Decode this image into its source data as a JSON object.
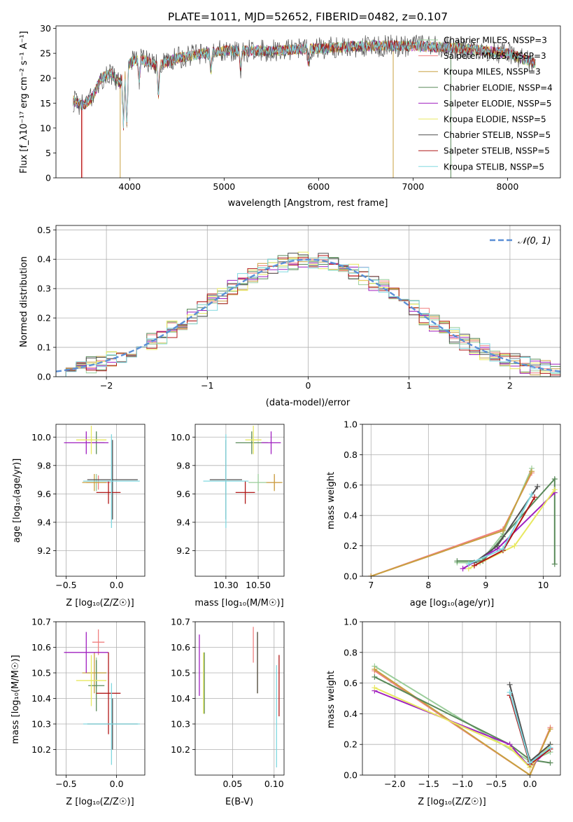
{
  "figure": {
    "title": "PLATE=1011, MJD=52652, FIBERID=0482, z=0.107",
    "colors": [
      "#9acd9a",
      "#f08080",
      "#c8a040",
      "#5a8a5a",
      "#a020c0",
      "#e8e860",
      "#505050",
      "#b01818",
      "#80d8e0"
    ]
  },
  "chart_data": [
    {
      "id": "spectrum",
      "type": "line",
      "xlabel": "wavelength [Angstrom, rest frame]",
      "ylabel": "Flux [f_λ10⁻¹⁷ erg cm⁻² s⁻¹ A⁻¹]",
      "xlim": [
        3220,
        8560
      ],
      "ylim": [
        0,
        30.5
      ],
      "xticks": [
        4000,
        5000,
        6000,
        7000,
        8000
      ],
      "yticks": [
        0,
        5,
        10,
        15,
        20,
        25,
        30
      ],
      "legend_position": "upper-right",
      "series": [
        {
          "name": "Chabrier MILES, N_SSP=3",
          "color": "#9acd9a"
        },
        {
          "name": "Salpeter MILES, N_SSP=3",
          "color": "#f08080"
        },
        {
          "name": "Kroupa MILES, N_SSP=3",
          "color": "#c8a040"
        },
        {
          "name": "Chabrier ELODIE, N_SSP=4",
          "color": "#5a8a5a"
        },
        {
          "name": "Salpeter ELODIE, N_SSP=5",
          "color": "#a020c0"
        },
        {
          "name": "Kroupa ELODIE, N_SSP=5",
          "color": "#e8e860"
        },
        {
          "name": "Chabrier STELIB, N_SSP=5",
          "color": "#505050"
        },
        {
          "name": "Salpeter STELIB, N_SSP=5",
          "color": "#b01818"
        },
        {
          "name": "Kroupa STELIB, N_SSP=5",
          "color": "#80d8e0"
        }
      ],
      "continuum": [
        [
          3400,
          15.5
        ],
        [
          3500,
          14.5
        ],
        [
          3600,
          16
        ],
        [
          3700,
          20
        ],
        [
          3800,
          21
        ],
        [
          3900,
          19
        ],
        [
          4000,
          23
        ],
        [
          4100,
          24
        ],
        [
          4300,
          22.5
        ],
        [
          4500,
          24
        ],
        [
          4800,
          25
        ],
        [
          5000,
          25.5
        ],
        [
          5500,
          25.5
        ],
        [
          6000,
          26
        ],
        [
          6500,
          26.5
        ],
        [
          7000,
          26.5
        ],
        [
          7500,
          26
        ],
        [
          8000,
          25
        ],
        [
          8300,
          23
        ]
      ]
    },
    {
      "id": "residuals",
      "type": "histogram",
      "xlabel": "(data-model)/error",
      "ylabel": "Normed distribution",
      "xlim": [
        -2.5,
        2.5
      ],
      "ylim": [
        0,
        0.515
      ],
      "xticks": [
        -2,
        -1,
        0,
        1,
        2
      ],
      "yticks": [
        0.0,
        0.1,
        0.2,
        0.3,
        0.4,
        0.5
      ],
      "legend": [
        "𝒩(0, 1)"
      ],
      "normal_curve_color": "#5b8fd6"
    },
    {
      "id": "age-vs-z",
      "type": "scatter",
      "xlabel": "Z [log₁₀(Z/Z☉)]",
      "ylabel": "age  [log₁₀(age/yr)]",
      "xlim": [
        -0.6,
        0.28
      ],
      "ylim": [
        9.02,
        10.09
      ],
      "xticks": [
        -0.5,
        0.0
      ],
      "xtick_labels": [
        "−0.5",
        "0.0"
      ],
      "yticks": [
        9.2,
        9.4,
        9.6,
        9.8,
        10.0
      ],
      "points": [
        {
          "x": -0.2,
          "y": 9.68,
          "xe": 0.1,
          "ye": 0.06,
          "c": 0
        },
        {
          "x": -0.18,
          "y": 9.68,
          "xe": 0.12,
          "ye": 0.05,
          "c": 1
        },
        {
          "x": -0.22,
          "y": 9.68,
          "xe": 0.12,
          "ye": 0.06,
          "c": 2
        },
        {
          "x": -0.2,
          "y": 9.96,
          "xe": 0.08,
          "ye": 0.08,
          "c": 3
        },
        {
          "x": -0.3,
          "y": 9.96,
          "xe": 0.22,
          "ye": 0.08,
          "c": 4
        },
        {
          "x": -0.25,
          "y": 9.98,
          "xe": 0.15,
          "ye": 0.1,
          "c": 5
        },
        {
          "x": -0.04,
          "y": 9.7,
          "xe": 0.25,
          "ye": 0.28,
          "c": 6
        },
        {
          "x": -0.08,
          "y": 9.61,
          "xe": 0.12,
          "ye": 0.08,
          "c": 7
        },
        {
          "x": -0.05,
          "y": 9.69,
          "xe": 0.28,
          "ye": 0.33,
          "c": 8
        }
      ]
    },
    {
      "id": "age-vs-mass",
      "type": "scatter",
      "xlabel": "mass [log₁₀(M/M☉)]",
      "ylabel": "",
      "xlim": [
        10.11,
        10.66
      ],
      "ylim": [
        9.02,
        10.09
      ],
      "xticks": [
        10.3,
        10.5
      ],
      "xtick_labels": [
        "10.30",
        "10.50"
      ],
      "yticks": [
        9.2,
        9.4,
        9.6,
        9.8,
        10.0
      ],
      "points": [
        {
          "x": 10.5,
          "y": 9.68,
          "xe": 0.06,
          "ye": 0.06,
          "c": 0
        },
        {
          "x": 10.6,
          "y": 9.68,
          "xe": 0.04,
          "ye": 0.05,
          "c": 1
        },
        {
          "x": 10.6,
          "y": 9.68,
          "xe": 0.05,
          "ye": 0.06,
          "c": 2
        },
        {
          "x": 10.46,
          "y": 9.96,
          "xe": 0.1,
          "ye": 0.08,
          "c": 3
        },
        {
          "x": 10.58,
          "y": 9.96,
          "xe": 0.06,
          "ye": 0.08,
          "c": 4
        },
        {
          "x": 10.47,
          "y": 9.98,
          "xe": 0.05,
          "ye": 0.1,
          "c": 5
        },
        {
          "x": 10.3,
          "y": 9.7,
          "xe": 0.1,
          "ye": 0.28,
          "c": 6
        },
        {
          "x": 10.42,
          "y": 9.61,
          "xe": 0.06,
          "ye": 0.08,
          "c": 7
        },
        {
          "x": 10.3,
          "y": 9.69,
          "xe": 0.14,
          "ye": 0.33,
          "c": 8
        }
      ]
    },
    {
      "id": "weight-vs-age",
      "type": "line",
      "xlabel": "age  [log₁₀(age/yr)]",
      "ylabel": "mass weight",
      "xlim": [
        6.85,
        10.3
      ],
      "ylim": [
        0,
        1.0
      ],
      "xticks": [
        7,
        8,
        9,
        10
      ],
      "yticks": [
        0.0,
        0.2,
        0.4,
        0.6,
        0.8,
        1.0
      ],
      "series": [
        {
          "c": 0,
          "pts": [
            [
              8.5,
              0.09
            ],
            [
              8.9,
              0.09
            ],
            [
              9.3,
              0.28
            ],
            [
              9.8,
              0.71
            ]
          ]
        },
        {
          "c": 1,
          "pts": [
            [
              7.0,
              0.0
            ],
            [
              9.3,
              0.31
            ],
            [
              9.8,
              0.68
            ]
          ]
        },
        {
          "c": 2,
          "pts": [
            [
              7.0,
              0.0
            ],
            [
              9.3,
              0.3
            ],
            [
              9.8,
              0.69
            ]
          ]
        },
        {
          "c": 3,
          "pts": [
            [
              8.5,
              0.1
            ],
            [
              8.95,
              0.1
            ],
            [
              9.3,
              0.26
            ],
            [
              10.2,
              0.64
            ],
            [
              10.2,
              0.08
            ]
          ]
        },
        {
          "c": 4,
          "pts": [
            [
              8.6,
              0.05
            ],
            [
              9.2,
              0.18
            ],
            [
              10.2,
              0.55
            ]
          ]
        },
        {
          "c": 5,
          "pts": [
            [
              8.7,
              0.05
            ],
            [
              9.5,
              0.2
            ],
            [
              10.2,
              0.57
            ]
          ]
        },
        {
          "c": 6,
          "pts": [
            [
              8.8,
              0.09
            ],
            [
              9.2,
              0.2
            ],
            [
              9.9,
              0.59
            ]
          ]
        },
        {
          "c": 7,
          "pts": [
            [
              8.8,
              0.07
            ],
            [
              9.3,
              0.17
            ],
            [
              9.85,
              0.52
            ]
          ]
        },
        {
          "c": 8,
          "pts": [
            [
              8.7,
              0.08
            ],
            [
              9.3,
              0.18
            ],
            [
              9.8,
              0.54
            ]
          ]
        }
      ]
    },
    {
      "id": "mass-vs-z",
      "type": "scatter",
      "xlabel": "Z [log₁₀(Z/Z☉)]",
      "ylabel": "mass [log₁₀(M/M☉)]",
      "xlim": [
        -0.6,
        0.28
      ],
      "ylim": [
        10.1,
        10.7
      ],
      "xticks": [
        -0.5,
        0.0
      ],
      "xtick_labels": [
        "−0.5",
        "0.0"
      ],
      "yticks": [
        10.2,
        10.3,
        10.4,
        10.5,
        10.6,
        10.7
      ],
      "points": [
        {
          "x": -0.2,
          "y": 10.5,
          "xe": 0.1,
          "ye": 0.06,
          "c": 0
        },
        {
          "x": -0.18,
          "y": 10.62,
          "xe": 0.06,
          "ye": 0.05,
          "c": 1
        },
        {
          "x": -0.22,
          "y": 10.5,
          "xe": 0.12,
          "ye": 0.08,
          "c": 2
        },
        {
          "x": -0.2,
          "y": 10.45,
          "xe": 0.08,
          "ye": 0.1,
          "c": 3
        },
        {
          "x": -0.3,
          "y": 10.58,
          "xe": 0.22,
          "ye": 0.08,
          "c": 4
        },
        {
          "x": -0.25,
          "y": 10.47,
          "xe": 0.15,
          "ye": 0.1,
          "c": 5
        },
        {
          "x": -0.04,
          "y": 10.3,
          "xe": 0.25,
          "ye": 0.1,
          "c": 6
        },
        {
          "x": -0.08,
          "y": 10.42,
          "xe": 0.12,
          "ye": 0.16,
          "c": 7
        },
        {
          "x": -0.05,
          "y": 10.3,
          "xe": 0.28,
          "ye": 0.16,
          "c": 8
        }
      ]
    },
    {
      "id": "mass-vs-ebv",
      "type": "scatter",
      "xlabel": "E(B-V)",
      "ylabel": "",
      "xlim": [
        0.005,
        0.112
      ],
      "ylim": [
        10.1,
        10.7
      ],
      "xticks": [
        0.05,
        0.1
      ],
      "xtick_labels": [
        "0.05",
        "0.10"
      ],
      "yticks": [
        10.2,
        10.3,
        10.4,
        10.5,
        10.6,
        10.7
      ],
      "points": [
        {
          "x": 0.075,
          "y": 10.61,
          "xe": 0,
          "ye": 0.07,
          "c": 1
        },
        {
          "x": 0.08,
          "y": 10.54,
          "xe": 0,
          "ye": 0.12,
          "c": 2
        },
        {
          "x": 0.016,
          "y": 10.46,
          "xe": 0,
          "ye": 0.12,
          "c": 3
        },
        {
          "x": 0.01,
          "y": 10.53,
          "xe": 0,
          "ye": 0.12,
          "c": 4
        },
        {
          "x": 0.015,
          "y": 10.46,
          "xe": 0,
          "ye": 0.12,
          "c": 5
        },
        {
          "x": 0.08,
          "y": 10.54,
          "xe": 0,
          "ye": 0.12,
          "c": 6
        },
        {
          "x": 0.106,
          "y": 10.45,
          "xe": 0,
          "ye": 0.12,
          "c": 7
        },
        {
          "x": 0.103,
          "y": 10.33,
          "xe": 0,
          "ye": 0.2,
          "c": 8
        }
      ]
    },
    {
      "id": "weight-vs-z",
      "type": "line",
      "xlabel": "Z [log₁₀(Z/Z☉)]",
      "ylabel": "mass weight",
      "xlim": [
        -2.48,
        0.45
      ],
      "ylim": [
        0,
        1.0
      ],
      "xticks": [
        -2.0,
        -1.5,
        -1.0,
        -0.5,
        0.0
      ],
      "xtick_labels": [
        "−2.0",
        "−1.5",
        "−1.0",
        "−0.5",
        "0.0"
      ],
      "yticks": [
        0.0,
        0.2,
        0.4,
        0.6,
        0.8,
        1.0
      ],
      "series": [
        {
          "c": 0,
          "pts": [
            [
              -2.3,
              0.71
            ],
            [
              0.0,
              0.09
            ],
            [
              0.3,
              0.15
            ]
          ]
        },
        {
          "c": 1,
          "pts": [
            [
              -2.3,
              0.68
            ],
            [
              0.0,
              0.0
            ],
            [
              0.3,
              0.31
            ]
          ]
        },
        {
          "c": 2,
          "pts": [
            [
              -2.3,
              0.69
            ],
            [
              0.0,
              0.0
            ],
            [
              0.3,
              0.3
            ]
          ]
        },
        {
          "c": 3,
          "pts": [
            [
              -2.3,
              0.64
            ],
            [
              -0.3,
              0.2
            ],
            [
              0.0,
              0.1
            ],
            [
              0.3,
              0.08
            ]
          ]
        },
        {
          "c": 4,
          "pts": [
            [
              -2.3,
              0.55
            ],
            [
              -0.3,
              0.2
            ],
            [
              0.0,
              0.05
            ],
            [
              0.3,
              0.18
            ]
          ]
        },
        {
          "c": 5,
          "pts": [
            [
              -2.3,
              0.57
            ],
            [
              -0.3,
              0.18
            ],
            [
              0.0,
              0.05
            ],
            [
              0.3,
              0.2
            ]
          ]
        },
        {
          "c": 6,
          "pts": [
            [
              -0.3,
              0.59
            ],
            [
              0.0,
              0.09
            ],
            [
              0.3,
              0.2
            ]
          ]
        },
        {
          "c": 7,
          "pts": [
            [
              -0.3,
              0.52
            ],
            [
              0.0,
              0.07
            ],
            [
              0.3,
              0.17
            ]
          ]
        },
        {
          "c": 8,
          "pts": [
            [
              -0.3,
              0.54
            ],
            [
              0.0,
              0.08
            ],
            [
              0.3,
              0.18
            ]
          ]
        }
      ]
    }
  ]
}
